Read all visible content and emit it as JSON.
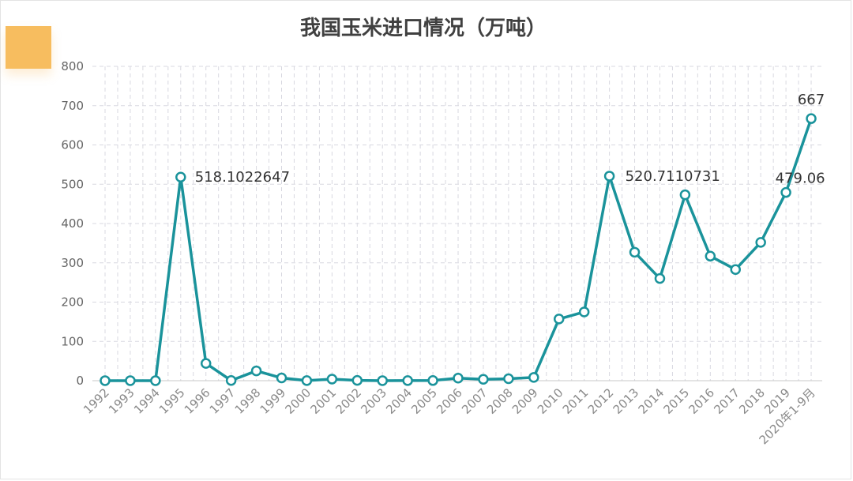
{
  "chart_data": {
    "type": "line",
    "title": "我国玉米进口情况（万吨）",
    "xlabel": "",
    "ylabel": "",
    "ylim": [
      0,
      800
    ],
    "yticks": [
      0,
      100,
      200,
      300,
      400,
      500,
      600,
      700,
      800
    ],
    "grid": true,
    "legend": "none",
    "categories": [
      "1992",
      "1993",
      "1994",
      "1995",
      "1996",
      "1997",
      "1998",
      "1999",
      "2000",
      "2001",
      "2002",
      "2003",
      "2004",
      "2005",
      "2006",
      "2007",
      "2008",
      "2009",
      "2010",
      "2011",
      "2012",
      "2013",
      "2014",
      "2015",
      "2016",
      "2017",
      "2018",
      "2019",
      "2020年1-9月"
    ],
    "series": [
      {
        "color": "#1a939b",
        "values": [
          0.1,
          0.1,
          0.1,
          518.1022647,
          44,
          0.5,
          25,
          7,
          0.3,
          4,
          0.8,
          0.1,
          0.2,
          0.4,
          6.5,
          3.5,
          5,
          8.4,
          157,
          175,
          520.7110731,
          327,
          260,
          473,
          317,
          283,
          352,
          479.06,
          667
        ]
      }
    ],
    "data_labels": [
      {
        "index": 3,
        "text": "518.1022647"
      },
      {
        "index": 20,
        "text": "520.7110731"
      },
      {
        "index": 27,
        "text": "479.06"
      },
      {
        "index": 28,
        "text": "667"
      }
    ]
  },
  "colors": {
    "line": "#1a939b",
    "marker_fill": "#ffffff",
    "grid": "#d8d8e0",
    "accent": "#f7bd5f"
  }
}
